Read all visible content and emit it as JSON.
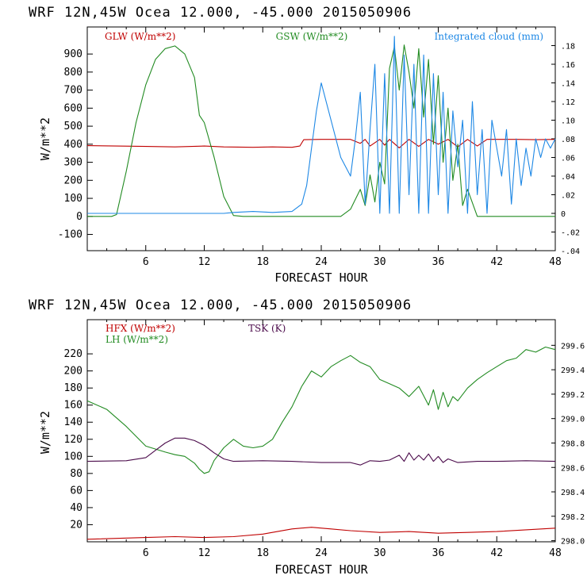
{
  "chart_data": [
    {
      "type": "line",
      "title": "WRF   12N,45W Ocea  12.000, -45.000  2015050906",
      "xlabel": "FORECAST HOUR",
      "ylabel": "W/m**2",
      "xlim": [
        0,
        48
      ],
      "ylim": [
        -190,
        1050
      ],
      "y2lim": [
        -0.04,
        0.2
      ],
      "xticks": [
        "6",
        "12",
        "18",
        "24",
        "30",
        "36",
        "42",
        "48"
      ],
      "yticks": [
        "-100",
        "0",
        "100",
        "200",
        "300",
        "400",
        "500",
        "600",
        "700",
        "800",
        "900"
      ],
      "y2ticks": [
        "-.04",
        "-.02",
        "0",
        ".02",
        ".04",
        ".06",
        ".08",
        ".10",
        ".12",
        ".14",
        ".16",
        ".18"
      ],
      "legend": [
        "GLW (W/m**2)",
        "GSW (W/m**2)",
        "Integrated cloud (mm)"
      ],
      "colors": {
        "GLW": "#c00000",
        "GSW": "#228b22",
        "CLOUD": "#1e88e5"
      },
      "series": [
        {
          "name": "GLW (W/m**2)",
          "axis": "left",
          "x": [
            0,
            3,
            6,
            9,
            12,
            14,
            17,
            19,
            21,
            21.8,
            22.2,
            24,
            27,
            28,
            28.5,
            29,
            30,
            30.5,
            31,
            32,
            33,
            34,
            35,
            36,
            37,
            38,
            39,
            40,
            41,
            42,
            44,
            46,
            48
          ],
          "y": [
            392,
            390,
            388,
            385,
            390,
            385,
            383,
            385,
            383,
            390,
            425,
            427,
            427,
            405,
            427,
            390,
            427,
            395,
            427,
            380,
            427,
            388,
            427,
            400,
            427,
            385,
            427,
            390,
            427,
            427,
            427,
            425,
            427
          ]
        },
        {
          "name": "GSW (W/m**2)",
          "axis": "left",
          "x": [
            0,
            2.5,
            3,
            4,
            5,
            6,
            7,
            8,
            9,
            10,
            11,
            11.5,
            12,
            13,
            14,
            15,
            16,
            26,
            27,
            28,
            28.5,
            29,
            29.5,
            30,
            30.5,
            31,
            31.5,
            32,
            32.5,
            33,
            33.5,
            34,
            34.5,
            35,
            35.5,
            36,
            36.5,
            37,
            37.5,
            38,
            38.5,
            39,
            40,
            48
          ],
          "y": [
            0,
            0,
            10,
            250,
            520,
            730,
            870,
            930,
            945,
            900,
            770,
            560,
            520,
            330,
            110,
            5,
            0,
            0,
            40,
            150,
            60,
            230,
            80,
            300,
            180,
            820,
            940,
            700,
            950,
            800,
            600,
            930,
            550,
            870,
            400,
            780,
            300,
            600,
            200,
            400,
            60,
            150,
            0,
            0
          ]
        },
        {
          "name": "Integrated cloud (mm)",
          "axis": "right",
          "x": [
            0,
            14,
            15,
            17,
            19,
            21,
            22,
            22.5,
            23,
            23.5,
            24,
            25,
            26,
            27,
            27.5,
            28,
            28.5,
            29,
            29.5,
            30,
            30.5,
            31,
            31.5,
            32,
            32.5,
            33,
            33.5,
            34,
            34.5,
            35,
            35.5,
            36,
            36.5,
            37,
            37.5,
            38,
            38.5,
            39,
            39.5,
            40,
            40.5,
            41,
            41.5,
            42,
            42.5,
            43,
            43.5,
            44,
            44.5,
            45,
            45.5,
            46,
            46.5,
            47,
            47.5,
            48
          ],
          "y": [
            0,
            0,
            0.001,
            0.002,
            0.001,
            0.002,
            0.01,
            0.03,
            0.07,
            0.11,
            0.14,
            0.1,
            0.06,
            0.04,
            0.08,
            0.13,
            0.01,
            0.09,
            0.16,
            0.0,
            0.15,
            0.0,
            0.19,
            0.0,
            0.17,
            0.02,
            0.16,
            0.0,
            0.17,
            0.0,
            0.15,
            0.02,
            0.13,
            0.0,
            0.11,
            0.05,
            0.1,
            0.0,
            0.12,
            0.02,
            0.09,
            0.0,
            0.1,
            0.07,
            0.04,
            0.09,
            0.01,
            0.08,
            0.03,
            0.07,
            0.04,
            0.08,
            0.06,
            0.08,
            0.07,
            0.08
          ]
        }
      ]
    },
    {
      "type": "line",
      "title": "WRF   12N,45W Ocea  12.000, -45.000  2015050906",
      "xlabel": "FORECAST HOUR",
      "ylabel": "W/m**2",
      "xlim": [
        0,
        48
      ],
      "ylim": [
        0,
        260
      ],
      "y2lim": [
        297.991,
        299.81
      ],
      "xticks": [
        "6",
        "12",
        "18",
        "24",
        "30",
        "36",
        "42",
        "48"
      ],
      "yticks": [
        "20",
        "40",
        "60",
        "80",
        "100",
        "120",
        "140",
        "160",
        "180",
        "200",
        "220"
      ],
      "y2ticks": [
        "298.0",
        "298.2",
        "298.4",
        "298.6",
        "298.8",
        "299.0",
        "299.2",
        "299.4",
        "299.6"
      ],
      "legend": [
        "HFX (W/m**2)",
        "LH  (W/m**2)",
        "TSK (K)"
      ],
      "colors": {
        "HFX": "#c00000",
        "LH": "#228b22",
        "TSK": "#4b0b4b"
      },
      "series": [
        {
          "name": "HFX (W/m**2)",
          "axis": "left",
          "x": [
            0,
            6,
            9,
            12,
            15,
            18,
            21,
            23,
            25,
            27,
            30,
            33,
            36,
            39,
            42,
            45,
            48
          ],
          "y": [
            3,
            5,
            6,
            5,
            6,
            9,
            15,
            17,
            15,
            13,
            11,
            12,
            10,
            11,
            12,
            14,
            16
          ]
        },
        {
          "name": "LH  (W/m**2)",
          "axis": "left",
          "x": [
            0,
            2,
            4,
            6,
            8,
            9,
            10,
            11,
            11.5,
            12,
            12.5,
            13,
            14,
            15,
            16,
            17,
            18,
            19,
            20,
            21,
            22,
            23,
            24,
            25,
            26,
            27,
            28,
            29,
            30,
            31,
            32,
            33,
            34,
            35,
            35.5,
            36,
            36.5,
            37,
            37.5,
            38,
            39,
            40,
            41,
            42,
            43,
            44,
            45,
            46,
            47,
            48
          ],
          "y": [
            165,
            155,
            135,
            112,
            105,
            102,
            100,
            92,
            85,
            80,
            82,
            95,
            110,
            120,
            112,
            110,
            112,
            120,
            140,
            158,
            182,
            200,
            193,
            205,
            212,
            218,
            210,
            205,
            190,
            185,
            180,
            170,
            182,
            160,
            178,
            155,
            175,
            158,
            170,
            165,
            180,
            190,
            198,
            205,
            212,
            215,
            225,
            222,
            228,
            225
          ]
        },
        {
          "name": "TSK (K)",
          "axis": "right",
          "x": [
            0,
            4,
            6,
            7,
            8,
            9,
            10,
            11,
            12,
            13,
            14,
            15,
            18,
            21,
            24,
            27,
            28,
            29,
            30,
            31,
            32,
            32.5,
            33,
            33.5,
            34,
            34.5,
            35,
            35.5,
            36,
            36.5,
            37,
            38,
            40,
            42,
            45,
            48
          ],
          "y": [
            298.65,
            298.655,
            298.68,
            298.74,
            298.8,
            298.84,
            298.84,
            298.82,
            298.78,
            298.72,
            298.67,
            298.65,
            298.655,
            298.65,
            298.64,
            298.64,
            298.62,
            298.655,
            298.65,
            298.66,
            298.7,
            298.65,
            298.72,
            298.66,
            298.7,
            298.66,
            298.71,
            298.65,
            298.69,
            298.64,
            298.67,
            298.64,
            298.65,
            298.65,
            298.655,
            298.65
          ]
        }
      ]
    }
  ]
}
